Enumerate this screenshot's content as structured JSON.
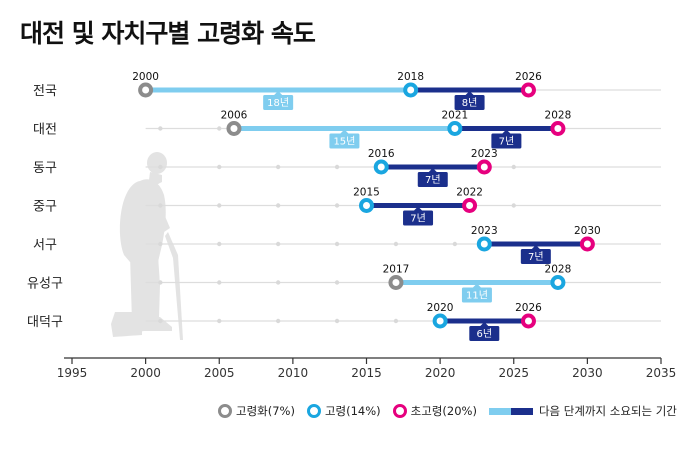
{
  "title": "대전 및 자치구별 고령화 속도",
  "colors": {
    "aging": "#8c8c8c",
    "aged": "#1aa6e0",
    "super_aged": "#e6007e",
    "phase1_bar": "#7fcdef",
    "phase2_bar": "#1b2f8c",
    "grid": "#dddddd",
    "silhouette": "#e3e3e3"
  },
  "legend": {
    "aging": "고령화(7%)",
    "aged": "고령(14%)",
    "super_aged": "초고령(20%)",
    "duration": "다음 단계까지 소요되는 기간"
  },
  "chart_data": {
    "type": "timeline",
    "xlim": [
      1995,
      2035
    ],
    "xticks": [
      1995,
      2000,
      2005,
      2010,
      2015,
      2020,
      2025,
      2030,
      2035
    ],
    "grid": true,
    "legend_position": "bottom",
    "rows": [
      {
        "region": "전국",
        "aging": 2000,
        "aged": 2018,
        "super_aged": 2026,
        "d1": "18년",
        "d2": "8년"
      },
      {
        "region": "대전",
        "aging": 2006,
        "aged": 2021,
        "super_aged": 2028,
        "d1": "15년",
        "d2": "7년"
      },
      {
        "region": "동구",
        "aging": null,
        "aged": 2016,
        "super_aged": 2023,
        "d1": null,
        "d2": "7년"
      },
      {
        "region": "중구",
        "aging": null,
        "aged": 2015,
        "super_aged": 2022,
        "d1": null,
        "d2": "7년"
      },
      {
        "region": "서구",
        "aging": null,
        "aged": 2023,
        "super_aged": 2030,
        "d1": null,
        "d2": "7년"
      },
      {
        "region": "유성구",
        "aging": 2017,
        "aged": 2028,
        "super_aged": null,
        "d1": "11년",
        "d2": null
      },
      {
        "region": "대덕구",
        "aging": null,
        "aged": 2020,
        "super_aged": 2026,
        "d1": null,
        "d2": "6년"
      }
    ]
  }
}
